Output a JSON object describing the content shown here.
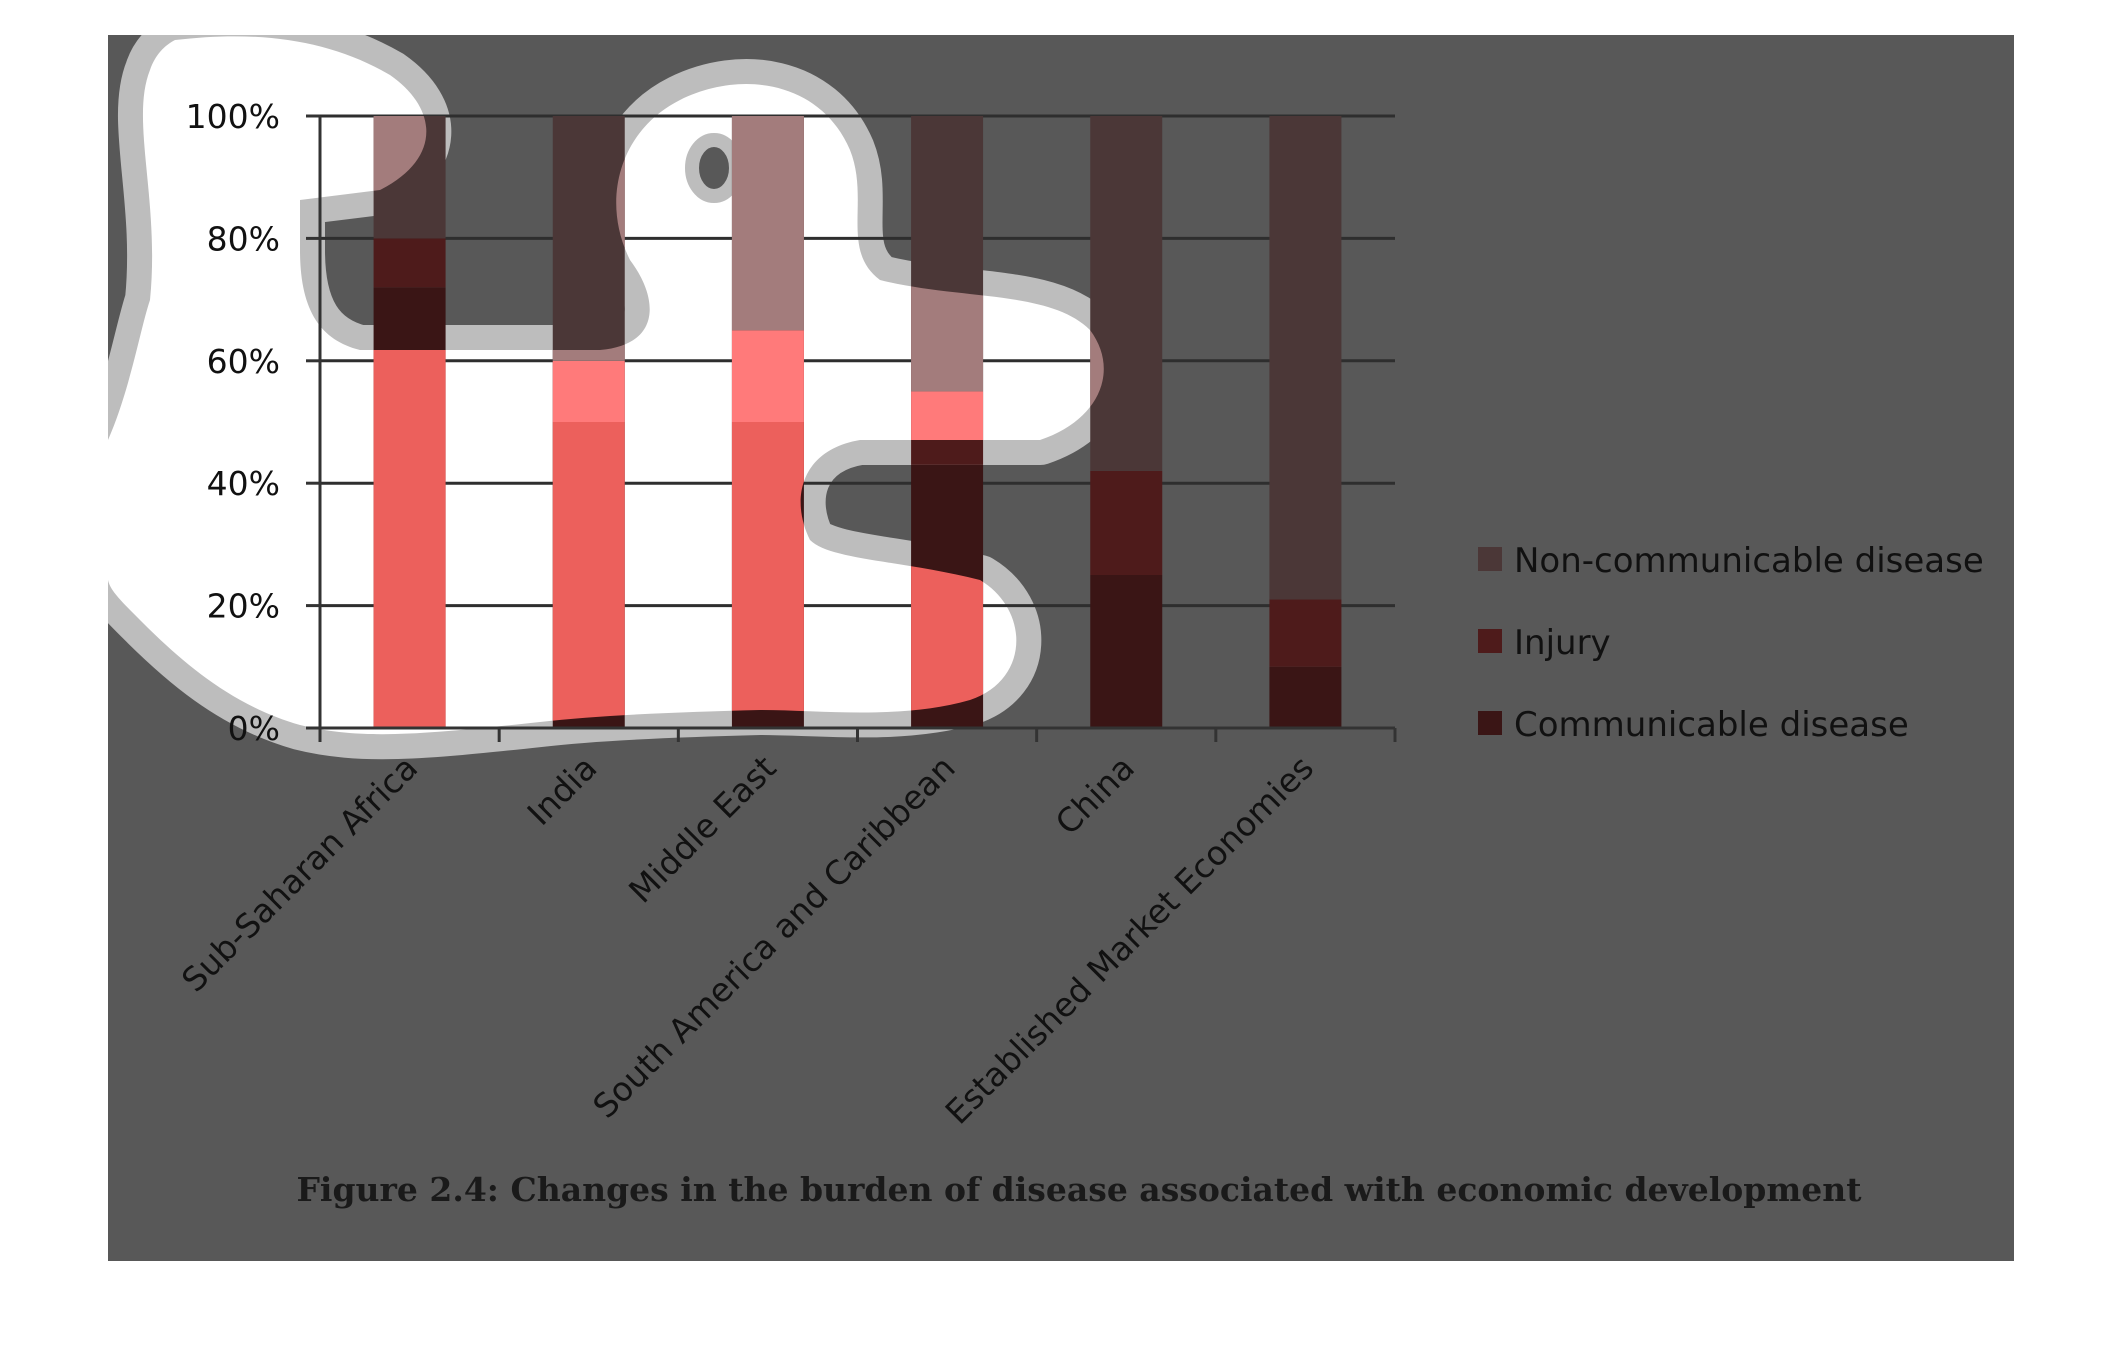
{
  "caption": "Figure 2.4: Changes in the burden of disease associated with economic development",
  "colors": {
    "panel_background": "#585858",
    "gridline": "#2e2e2e",
    "blob_halo": "#bdbdbd",
    "blob_fill": "#ffffff"
  },
  "chart_data": {
    "type": "bar",
    "stacked": true,
    "percent_stacked": true,
    "categories": [
      "Sub-Saharan Africa",
      "India",
      "Middle East",
      "South America and Caribbean",
      "China",
      "Established Market Economies"
    ],
    "series": [
      {
        "name": "Communicable disease",
        "values": [
          72,
          50,
          50,
          43,
          25,
          10
        ],
        "color": "#3a1515"
      },
      {
        "name": "Injury",
        "values": [
          8,
          10,
          15,
          12,
          17,
          11
        ],
        "color": "#4e1b1b"
      },
      {
        "name": "Non-communicable disease",
        "values": [
          20,
          40,
          35,
          45,
          58,
          79
        ],
        "color": "#4b3737"
      }
    ],
    "ylim": [
      0,
      100
    ],
    "yticks": [
      "0%",
      "20%",
      "40%",
      "60%",
      "80%",
      "100%"
    ],
    "ytick_values": [
      0,
      20,
      40,
      60,
      80,
      100
    ],
    "grid": true,
    "legend_placement": "right",
    "legend_order": [
      "Non-communicable disease",
      "Injury",
      "Communicable disease"
    ]
  }
}
